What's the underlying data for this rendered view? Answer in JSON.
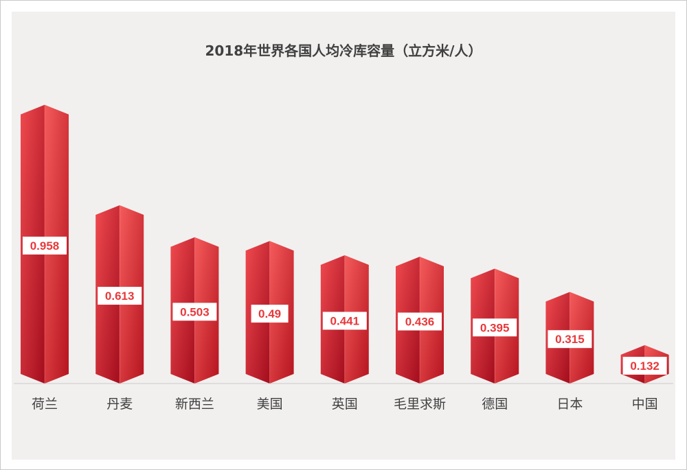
{
  "chart_data": {
    "type": "bar",
    "title": "2018年世界各国人均冷库容量（立方米/人）",
    "categories": [
      "荷兰",
      "丹麦",
      "新西兰",
      "美国",
      "英国",
      "毛里求斯",
      "德国",
      "日本",
      "中国"
    ],
    "values": [
      0.958,
      0.613,
      0.503,
      0.49,
      0.441,
      0.436,
      0.395,
      0.315,
      0.132
    ],
    "xlabel": "",
    "ylabel": "",
    "ylim": [
      0,
      1.0
    ],
    "grid": false,
    "legend": "none",
    "colors": {
      "bar_light": "#f25555",
      "bar_dark": "#a50f1e",
      "bar_top": "#f26a6a",
      "label_text": "#e8383b",
      "label_bg": "#ffffff"
    }
  }
}
